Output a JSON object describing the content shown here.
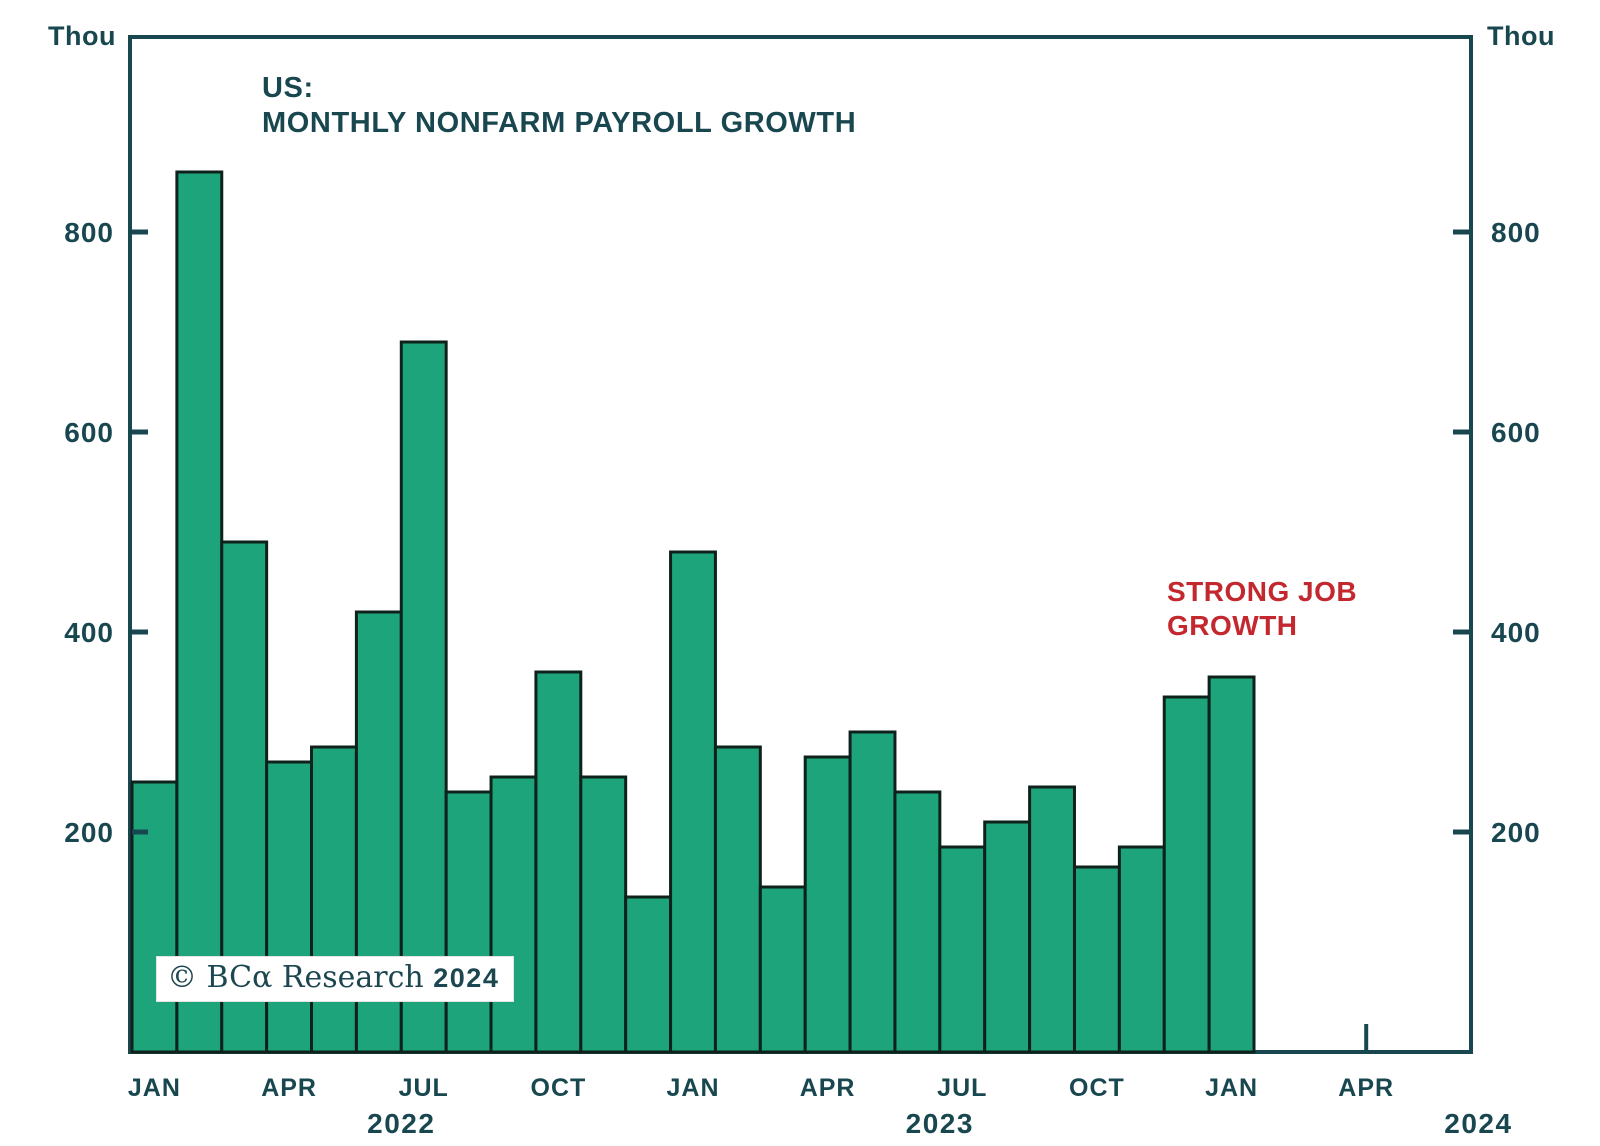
{
  "chart": {
    "y_unit_left": "Thou",
    "y_unit_right": "Thou",
    "title_line1": "US:",
    "title_line2": "MONTHLY NONFARM PAYROLL GROWTH",
    "annotation_line1": "STRONG JOB",
    "annotation_line2": "GROWTH",
    "annotation_color": "#c3282e",
    "watermark_text": "© BCα Research ",
    "watermark_year": "2024",
    "axis_color": "#194750",
    "bar_fill": "#1da47b",
    "bar_stroke": "#0e221b"
  },
  "chart_data": {
    "type": "bar",
    "title": "US: MONTHLY NONFARM PAYROLL GROWTH",
    "xlabel": "",
    "ylabel": "Thou",
    "categories": [
      "Jan 2022",
      "Feb 2022",
      "Mar 2022",
      "Apr 2022",
      "May 2022",
      "Jun 2022",
      "Jul 2022",
      "Aug 2022",
      "Sep 2022",
      "Oct 2022",
      "Nov 2022",
      "Dec 2022",
      "Jan 2023",
      "Feb 2023",
      "Mar 2023",
      "Apr 2023",
      "May 2023",
      "Jun 2023",
      "Jul 2023",
      "Aug 2023",
      "Sep 2023",
      "Oct 2023",
      "Nov 2023",
      "Dec 2023",
      "Jan 2024"
    ],
    "values": [
      250,
      860,
      490,
      270,
      285,
      420,
      690,
      240,
      255,
      360,
      255,
      135,
      480,
      285,
      145,
      275,
      300,
      240,
      185,
      210,
      245,
      165,
      185,
      335,
      355
    ],
    "yticks": [
      200,
      400,
      600,
      800
    ],
    "ylim": [
      0,
      1000
    ],
    "grid": false,
    "legend": false,
    "x_axis_tick_labels": [
      "JAN",
      "APR",
      "JUL",
      "OCT",
      "JAN",
      "APR",
      "JUL",
      "OCT",
      "JAN",
      "APR"
    ],
    "x_axis_years": [
      "2022",
      "2023",
      "2024"
    ],
    "annotation": "STRONG JOB GROWTH",
    "watermark": "© BCα Research 2024"
  }
}
